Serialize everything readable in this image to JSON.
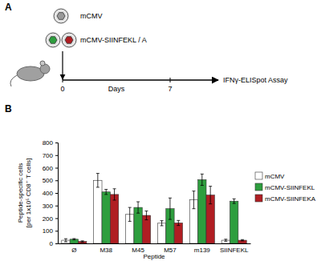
{
  "figure": {
    "panel_labels": [
      "A",
      "B"
    ]
  },
  "diagram": {
    "viruses": [
      "mCMV",
      "mCMV-SIINFEKL / A"
    ],
    "timeline": {
      "label": "Days",
      "ticks": [
        0,
        7
      ]
    },
    "assay": "IFNγ-ELISpot Assay"
  },
  "chart_data": {
    "type": "bar",
    "xlabel": "Peptide",
    "ylabel": [
      "Peptide-specific cells",
      "[per 1x10⁵ CD8⁺ T cells]"
    ],
    "categories": [
      "Ø",
      "M38",
      "M45",
      "M57",
      "m139",
      "SIINFEKL"
    ],
    "series": [
      {
        "name": "mCMV",
        "color": "#ffffff",
        "values": [
          25,
          500,
          230,
          160,
          345,
          25
        ],
        "errors": [
          12,
          55,
          55,
          20,
          70,
          8
        ]
      },
      {
        "name": "mCMV-SIINFEKL",
        "color": "#2e9e3e",
        "values": [
          33,
          408,
          285,
          275,
          505,
          335
        ],
        "errors": [
          5,
          20,
          45,
          85,
          45,
          18
        ]
      },
      {
        "name": "mCMV-SIINFEKA",
        "color": "#b01e23",
        "values": [
          15,
          388,
          222,
          162,
          383,
          25
        ],
        "errors": [
          5,
          45,
          35,
          20,
          70,
          5
        ]
      }
    ],
    "ylim": [
      0,
      800
    ],
    "yticks": [
      0,
      100,
      200,
      300,
      400,
      500,
      600,
      700,
      800
    ],
    "legend": "right"
  }
}
